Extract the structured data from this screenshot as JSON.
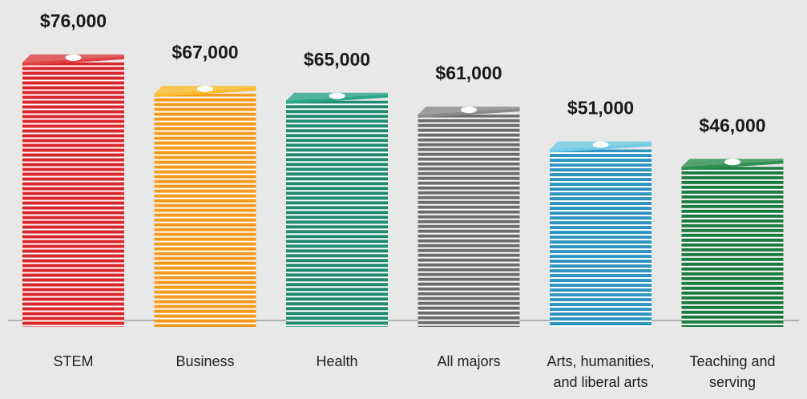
{
  "chart_data": {
    "type": "bar",
    "categories": [
      "STEM",
      "Business",
      "Health",
      "All majors",
      "Arts, humanities, and liberal arts",
      "Teaching and serving"
    ],
    "values": [
      76000,
      67000,
      65000,
      61000,
      51000,
      46000
    ],
    "value_labels": [
      "$76,000",
      "$67,000",
      "$65,000",
      "$61,000",
      "$51,000",
      "$46,000"
    ],
    "colors": [
      "#d9262b",
      "#f59a1e",
      "#1f8a70",
      "#6b6b6b",
      "#2f95c0",
      "#1b7a3f"
    ],
    "top_colors": [
      "#e04040",
      "#fbbd2e",
      "#2aa58a",
      "#8a8a8a",
      "#6fcbe6",
      "#2e9050"
    ]
  }
}
